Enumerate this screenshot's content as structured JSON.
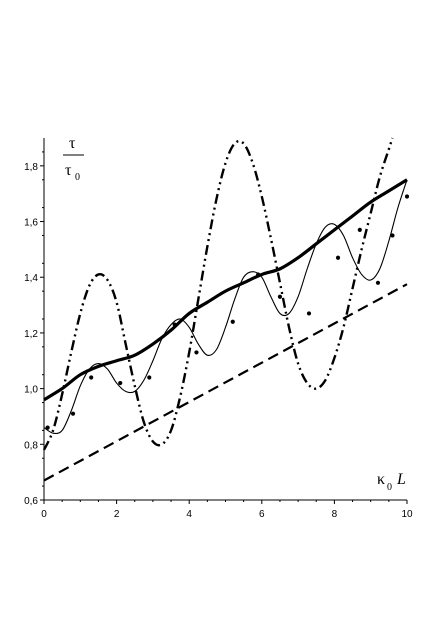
{
  "chart_data": {
    "type": "line",
    "title": "",
    "xlabel": {
      "symbol": "κ",
      "sub": "0",
      "tail": "L"
    },
    "ylabel": {
      "numerator": "τ",
      "denominator": "τ",
      "denominator_sub": "0"
    },
    "xlim": [
      0,
      10
    ],
    "ylim": [
      0.6,
      1.9
    ],
    "x_ticks": [
      0,
      2,
      4,
      6,
      8,
      10
    ],
    "x_tick_labels": [
      "0",
      "2",
      "4",
      "6",
      "8",
      "10"
    ],
    "y_ticks": [
      0.6,
      0.8,
      1.0,
      1.2,
      1.4,
      1.6,
      1.8
    ],
    "y_tick_labels": [
      "0,6",
      "0,8",
      "1,0",
      "1,2",
      "1,4",
      "1,6",
      "1,8"
    ],
    "grid": false,
    "legend": "none",
    "series": [
      {
        "style": "thick-solid",
        "x": [
          0,
          0.5,
          1,
          1.5,
          2,
          2.5,
          3,
          3.5,
          4,
          4.5,
          5,
          5.5,
          6,
          6.5,
          7,
          7.5,
          8,
          8.5,
          9,
          9.5,
          10
        ],
        "y": [
          0.96,
          1.0,
          1.05,
          1.08,
          1.1,
          1.12,
          1.16,
          1.21,
          1.27,
          1.31,
          1.35,
          1.38,
          1.41,
          1.43,
          1.47,
          1.52,
          1.57,
          1.62,
          1.67,
          1.71,
          1.75
        ]
      },
      {
        "style": "thin-solid",
        "x": [
          0,
          0.25,
          0.5,
          0.75,
          1,
          1.25,
          1.5,
          1.75,
          2,
          2.25,
          2.5,
          2.75,
          3,
          3.25,
          3.5,
          3.75,
          4,
          4.25,
          4.5,
          4.75,
          5,
          5.25,
          5.5,
          5.75,
          6,
          6.25,
          6.5,
          6.75,
          7,
          7.25,
          7.5,
          7.75,
          8,
          8.25,
          8.5,
          8.75,
          9,
          9.25,
          9.5,
          9.75,
          10
        ],
        "y": [
          0.86,
          0.84,
          0.85,
          0.92,
          1.01,
          1.07,
          1.09,
          1.07,
          1.02,
          0.99,
          0.99,
          1.03,
          1.1,
          1.18,
          1.23,
          1.25,
          1.22,
          1.16,
          1.12,
          1.14,
          1.22,
          1.32,
          1.4,
          1.42,
          1.4,
          1.33,
          1.27,
          1.27,
          1.33,
          1.43,
          1.52,
          1.58,
          1.59,
          1.55,
          1.47,
          1.41,
          1.39,
          1.43,
          1.53,
          1.65,
          1.75
        ]
      },
      {
        "style": "dots",
        "x": [
          0.1,
          0.8,
          1.3,
          2.1,
          2.9,
          3.6,
          4.2,
          5.2,
          5.9,
          6.5,
          7.3,
          8.1,
          8.7,
          9.2,
          9.6,
          10
        ],
        "y": [
          0.86,
          0.91,
          1.04,
          1.02,
          1.04,
          1.23,
          1.13,
          1.24,
          1.41,
          1.33,
          1.27,
          1.47,
          1.57,
          1.38,
          1.55,
          1.69
        ]
      },
      {
        "style": "dash-dot-dot",
        "x": [
          0,
          0.25,
          0.5,
          0.75,
          1,
          1.25,
          1.5,
          1.75,
          2,
          2.25,
          2.5,
          2.75,
          3,
          3.25,
          3.5,
          3.75,
          4,
          4.25,
          4.5,
          4.75,
          5,
          5.25,
          5.5,
          5.75,
          6,
          6.25,
          6.5,
          6.75,
          7,
          7.25,
          7.5,
          7.75,
          8,
          8.25,
          8.5,
          8.75,
          9,
          9.25,
          9.5,
          9.6
        ],
        "y": [
          0.78,
          0.85,
          0.98,
          1.13,
          1.27,
          1.37,
          1.41,
          1.39,
          1.31,
          1.16,
          1.01,
          0.88,
          0.81,
          0.8,
          0.85,
          0.97,
          1.13,
          1.32,
          1.51,
          1.68,
          1.81,
          1.88,
          1.88,
          1.81,
          1.69,
          1.54,
          1.38,
          1.22,
          1.09,
          1.02,
          1.0,
          1.03,
          1.11,
          1.22,
          1.36,
          1.5,
          1.63,
          1.76,
          1.86,
          1.9
        ]
      },
      {
        "style": "dashed",
        "x": [
          0,
          10
        ],
        "y": [
          0.67,
          1.375
        ]
      }
    ]
  }
}
